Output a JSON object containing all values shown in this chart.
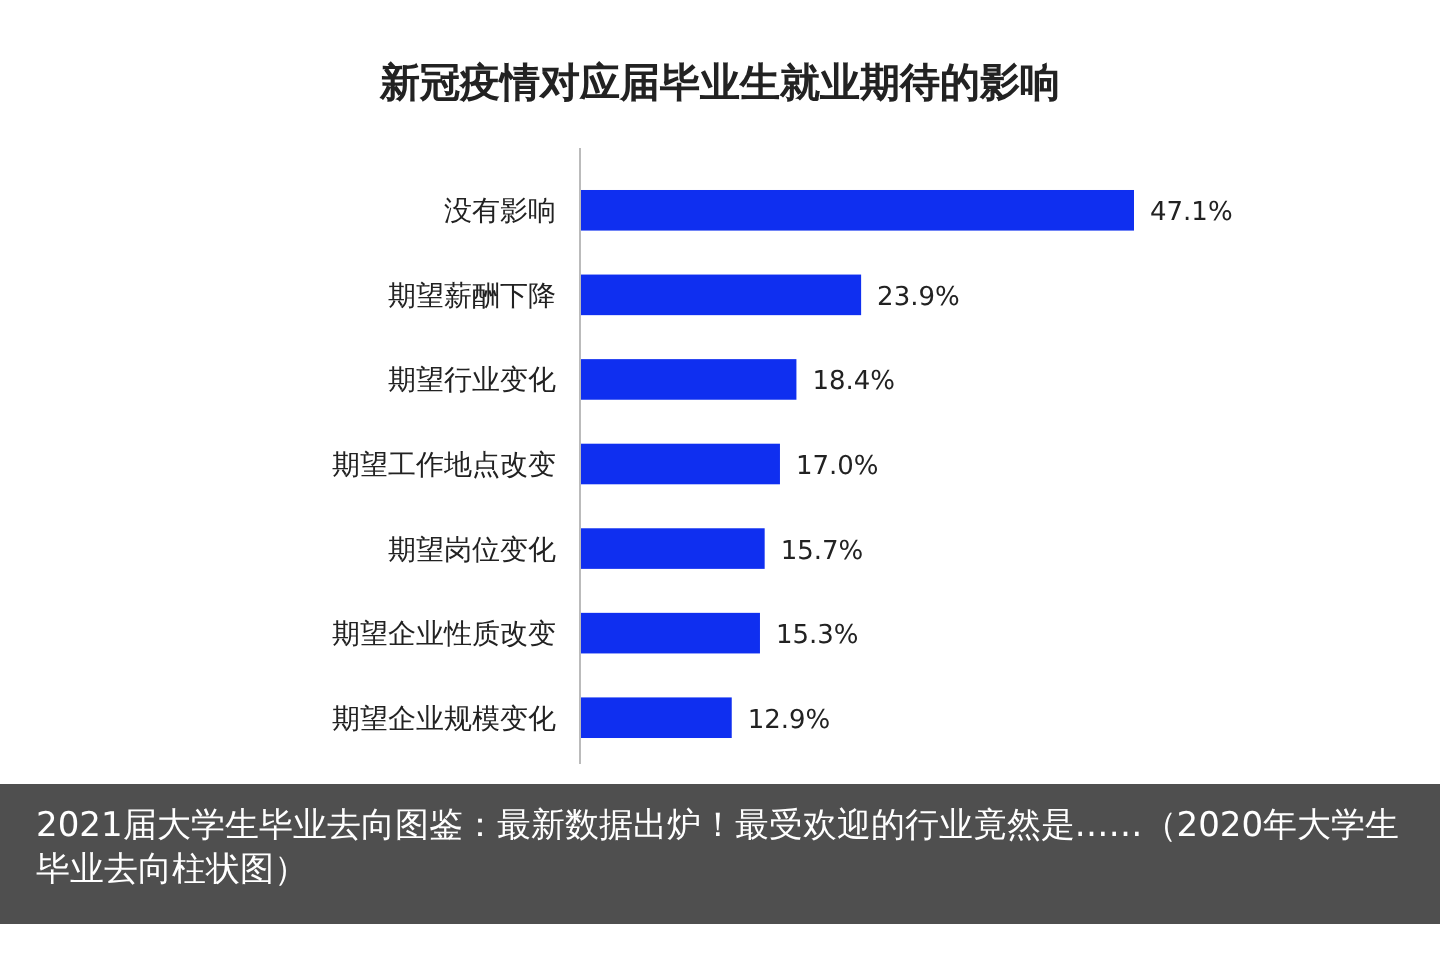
{
  "chart_data": {
    "type": "bar",
    "orientation": "horizontal",
    "title": "新冠疫情对应届毕业生就业期待的影响",
    "categories": [
      "没有影响",
      "期望薪酬下降",
      "期望行业变化",
      "期望工作地点改变",
      "期望岗位变化",
      "期望企业性质改变",
      "期望企业规模变化"
    ],
    "values": [
      47.1,
      23.9,
      18.4,
      17.0,
      15.7,
      15.3,
      12.9
    ],
    "value_labels": [
      "47.1%",
      "23.9%",
      "18.4%",
      "17.0%",
      "15.7%",
      "15.3%",
      "12.9%"
    ],
    "color": "#0f2ff0",
    "annotations": [
      "2021届大学生毕业去向图鉴：最新数据出炉！最受欢迎的行业竟然是……（2020年大学生毕业去向柱状图）"
    ]
  }
}
